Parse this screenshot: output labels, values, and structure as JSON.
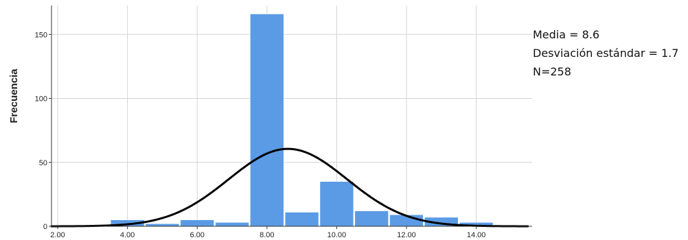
{
  "chart_data": {
    "type": "bar",
    "ylabel": "Frecuencia",
    "xlabel": "",
    "title": "",
    "xlim": [
      1.8,
      15.5
    ],
    "ylim": [
      0,
      172
    ],
    "x_ticks": [
      2,
      4,
      6,
      8,
      10,
      12,
      14
    ],
    "x_tick_labels": [
      "2.00",
      "4.00",
      "6.00",
      "8.00",
      "10.00",
      "12.00",
      "14.00"
    ],
    "y_ticks": [
      0,
      50,
      100,
      150
    ],
    "y_tick_labels": [
      "0",
      "50",
      "100",
      "150"
    ],
    "bin_width": 1,
    "bins": [
      {
        "x": 4,
        "value": 5
      },
      {
        "x": 5,
        "value": 2
      },
      {
        "x": 6,
        "value": 5
      },
      {
        "x": 7,
        "value": 3
      },
      {
        "x": 8,
        "value": 166
      },
      {
        "x": 9,
        "value": 11
      },
      {
        "x": 10,
        "value": 35
      },
      {
        "x": 11,
        "value": 12
      },
      {
        "x": 12,
        "value": 9
      },
      {
        "x": 13,
        "value": 7
      },
      {
        "x": 14,
        "value": 3
      }
    ],
    "normal_curve": {
      "mean": 8.6,
      "std": 1.7,
      "n": 258
    },
    "grid": "vertical",
    "bar_color": "#5b9be5",
    "curve_color": "#000000",
    "annotations": [
      "Media = 8.6",
      "Desviación estándar = 1.7",
      "N=258"
    ]
  }
}
